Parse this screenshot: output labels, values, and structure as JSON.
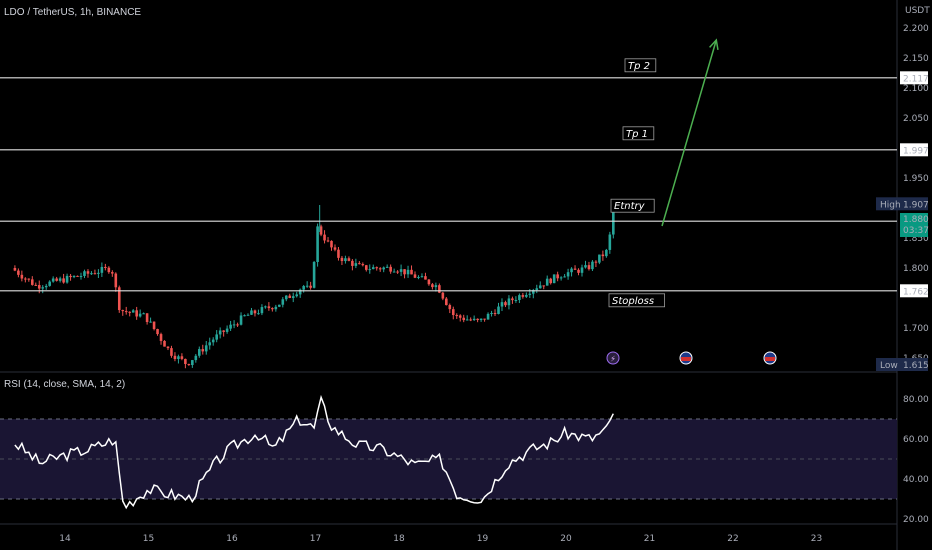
{
  "header": {
    "symbol_title": "LDO / TetherUS, 1h, BINANCE",
    "currency": "USDT"
  },
  "colors": {
    "up": "#26a69a",
    "down": "#ef5350",
    "level_line": "#e0e0e0",
    "arrow": "#4caf50",
    "rsi_line": "#ffffff",
    "rsi_band": "#1a1533"
  },
  "chart_data": [
    {
      "type": "candlestick",
      "title": "LDO / TetherUS, 1h, BINANCE",
      "ylabel": "USDT",
      "ylim": [
        1.62,
        2.2
      ],
      "y_ticks": [
        "2.200",
        "2.150",
        "2.100",
        "2.050",
        "1.950",
        "1.850",
        "1.800",
        "1.700",
        "1.650"
      ],
      "x_ticks": [
        "14",
        "15",
        "16",
        "17",
        "18",
        "19",
        "20",
        "21",
        "22",
        "23"
      ],
      "key_points": [
        {
          "day": 13.4,
          "price": 1.8
        },
        {
          "day": 13.7,
          "price": 1.77
        },
        {
          "day": 14.3,
          "price": 1.79
        },
        {
          "day": 14.6,
          "price": 1.8
        },
        {
          "day": 14.7,
          "price": 1.73
        },
        {
          "day": 15.0,
          "price": 1.72
        },
        {
          "day": 15.3,
          "price": 1.66
        },
        {
          "day": 15.5,
          "price": 1.64
        },
        {
          "day": 15.8,
          "price": 1.68
        },
        {
          "day": 16.2,
          "price": 1.72
        },
        {
          "day": 16.6,
          "price": 1.74
        },
        {
          "day": 16.9,
          "price": 1.77
        },
        {
          "day": 17.0,
          "price": 1.76
        },
        {
          "day": 17.05,
          "price": 1.87
        },
        {
          "day": 17.3,
          "price": 1.82
        },
        {
          "day": 17.6,
          "price": 1.8
        },
        {
          "day": 18.0,
          "price": 1.8
        },
        {
          "day": 18.5,
          "price": 1.77
        },
        {
          "day": 18.7,
          "price": 1.72
        },
        {
          "day": 19.0,
          "price": 1.71
        },
        {
          "day": 19.3,
          "price": 1.74
        },
        {
          "day": 19.7,
          "price": 1.77
        },
        {
          "day": 20.0,
          "price": 1.79
        },
        {
          "day": 20.3,
          "price": 1.8
        },
        {
          "day": 20.55,
          "price": 1.83
        },
        {
          "day": 20.6,
          "price": 1.9
        }
      ],
      "levels": [
        {
          "name": "Tp 2",
          "price": 2.117,
          "label": "2.117"
        },
        {
          "name": "Tp 1",
          "price": 1.997,
          "label": "1.997"
        },
        {
          "name": "Etntry",
          "price": 1.878,
          "label": "1.878"
        },
        {
          "name": "Stoploss",
          "price": 1.762,
          "label": "1.762"
        }
      ],
      "markers": {
        "high_label": "High",
        "high_value": "1.907",
        "high_price": 1.907,
        "low_label": "Low",
        "low_value": "1.615",
        "current_price": 1.88,
        "current_value": "1.880",
        "countdown": "03:37"
      },
      "arrow": {
        "from": {
          "day": 21.15,
          "price": 1.87
        },
        "to": {
          "day": 21.8,
          "price": 2.18
        }
      }
    },
    {
      "type": "line",
      "title": "RSI (14, close, SMA, 14, 2)",
      "ylim": [
        20,
        85
      ],
      "y_ticks": [
        "80.00",
        "60.00",
        "40.00",
        "20.00"
      ],
      "band": [
        30,
        70
      ],
      "midline": 50,
      "key_points": [
        {
          "day": 13.4,
          "rsi": 58
        },
        {
          "day": 13.7,
          "rsi": 48
        },
        {
          "day": 14.0,
          "rsi": 52
        },
        {
          "day": 14.3,
          "rsi": 55
        },
        {
          "day": 14.6,
          "rsi": 60
        },
        {
          "day": 14.7,
          "rsi": 26
        },
        {
          "day": 15.0,
          "rsi": 35
        },
        {
          "day": 15.3,
          "rsi": 32
        },
        {
          "day": 15.5,
          "rsi": 30
        },
        {
          "day": 15.8,
          "rsi": 48
        },
        {
          "day": 16.0,
          "rsi": 56
        },
        {
          "day": 16.3,
          "rsi": 63
        },
        {
          "day": 16.5,
          "rsi": 55
        },
        {
          "day": 16.8,
          "rsi": 70
        },
        {
          "day": 17.0,
          "rsi": 65
        },
        {
          "day": 17.05,
          "rsi": 80
        },
        {
          "day": 17.2,
          "rsi": 66
        },
        {
          "day": 17.5,
          "rsi": 57
        },
        {
          "day": 17.8,
          "rsi": 55
        },
        {
          "day": 18.2,
          "rsi": 47
        },
        {
          "day": 18.5,
          "rsi": 50
        },
        {
          "day": 18.7,
          "rsi": 32
        },
        {
          "day": 19.0,
          "rsi": 30
        },
        {
          "day": 19.3,
          "rsi": 48
        },
        {
          "day": 19.6,
          "rsi": 55
        },
        {
          "day": 19.8,
          "rsi": 58
        },
        {
          "day": 20.0,
          "rsi": 63
        },
        {
          "day": 20.3,
          "rsi": 60
        },
        {
          "day": 20.5,
          "rsi": 65
        },
        {
          "day": 20.6,
          "rsi": 78
        }
      ]
    }
  ]
}
